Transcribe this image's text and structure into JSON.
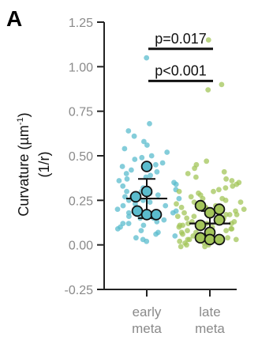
{
  "panel_label": "A",
  "chart_data": {
    "type": "scatter",
    "title": "",
    "ylabel_line1": "Curvature (µm",
    "ylabel_sup": "-1",
    "ylabel_line1_close": ")",
    "ylabel_line2": "(1/r)",
    "ylim": [
      -0.25,
      1.25
    ],
    "yticks": [
      -0.25,
      0.0,
      0.25,
      0.5,
      0.75,
      1.0,
      1.25
    ],
    "ytick_labels": [
      "-0.25",
      "0.00",
      "0.25",
      "0.50",
      "0.75",
      "1.00",
      "1.25"
    ],
    "categories": [
      {
        "label_line1": "early",
        "label_line2": "meta"
      },
      {
        "label_line1": "late",
        "label_line2": "meta"
      }
    ],
    "grid": false,
    "series": [
      {
        "color": "#5bbccd",
        "points": [
          1.05,
          0.68,
          0.64,
          0.61,
          0.58,
          0.56,
          0.54,
          0.52,
          0.5,
          0.49,
          0.48,
          0.46,
          0.45,
          0.44,
          0.43,
          0.42,
          0.41,
          0.4,
          0.39,
          0.38,
          0.37,
          0.36,
          0.35,
          0.34,
          0.33,
          0.32,
          0.31,
          0.3,
          0.3,
          0.29,
          0.28,
          0.27,
          0.27,
          0.26,
          0.25,
          0.25,
          0.24,
          0.23,
          0.22,
          0.22,
          0.21,
          0.2,
          0.2,
          0.19,
          0.18,
          0.18,
          0.17,
          0.16,
          0.15,
          0.15,
          0.14,
          0.13,
          0.12,
          0.12,
          0.11,
          0.1,
          0.09,
          0.08,
          0.07,
          0.06,
          0.05,
          0.04,
          0.03,
          0.02
        ],
        "replicates": [
          0.44,
          0.3,
          0.27,
          0.19,
          0.17,
          0.17
        ],
        "mean": 0.26,
        "error_upper": 0.37,
        "error_lower": 0.15
      },
      {
        "color": "#a3c55a",
        "points": [
          1.15,
          0.9,
          0.87,
          0.47,
          0.45,
          0.43,
          0.41,
          0.4,
          0.38,
          0.37,
          0.36,
          0.35,
          0.34,
          0.33,
          0.32,
          0.31,
          0.3,
          0.3,
          0.29,
          0.28,
          0.27,
          0.26,
          0.26,
          0.25,
          0.24,
          0.24,
          0.23,
          0.22,
          0.22,
          0.21,
          0.21,
          0.2,
          0.2,
          0.19,
          0.19,
          0.18,
          0.18,
          0.17,
          0.17,
          0.16,
          0.16,
          0.15,
          0.15,
          0.14,
          0.14,
          0.13,
          0.13,
          0.12,
          0.12,
          0.11,
          0.11,
          0.1,
          0.1,
          0.09,
          0.09,
          0.08,
          0.08,
          0.07,
          0.07,
          0.06,
          0.06,
          0.05,
          0.05,
          0.04,
          0.04,
          0.03,
          0.03,
          0.02,
          0.02,
          0.01,
          0.01,
          0.0,
          0.0,
          -0.01,
          -0.01,
          0.08,
          0.12,
          0.17,
          0.21,
          0.03
        ],
        "replicates": [
          0.22,
          0.2,
          0.18,
          0.14,
          0.11,
          0.07,
          0.04,
          0.03,
          0.03
        ],
        "mean": 0.12,
        "error_upper": 0.19,
        "error_lower": 0.04
      }
    ],
    "annotations": [
      {
        "text": "p=0.017",
        "y": 1.1
      },
      {
        "text": "p<0.001",
        "y": 0.92
      }
    ]
  }
}
